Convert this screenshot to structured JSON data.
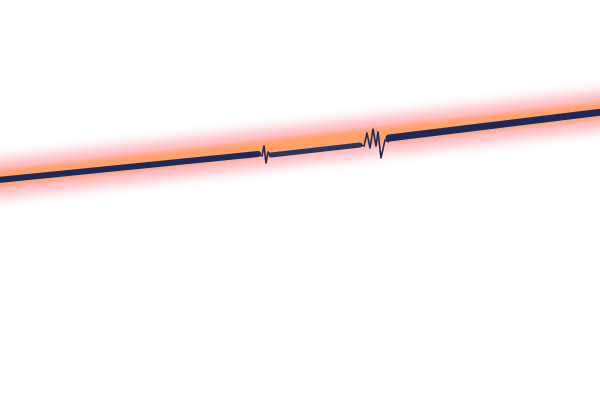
{
  "scene": {
    "background_color": "#ffffff",
    "glow_color_outer": "#ff8c8c",
    "glow_color_inner": "#ff9a5a",
    "line_color": "#1b2a5a",
    "segments": 3,
    "wiggles": 2
  }
}
